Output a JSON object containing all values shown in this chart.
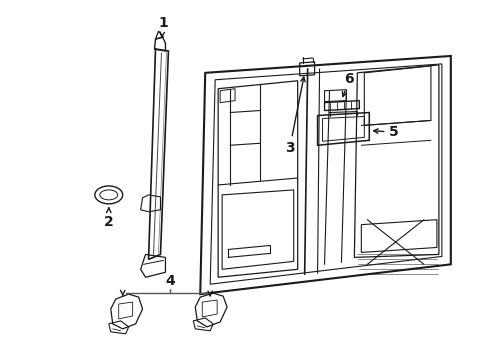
{
  "background_color": "#ffffff",
  "line_color": "#1a1a1a",
  "fig_width": 4.89,
  "fig_height": 3.6,
  "dpi": 100,
  "label_fontsize": 10
}
